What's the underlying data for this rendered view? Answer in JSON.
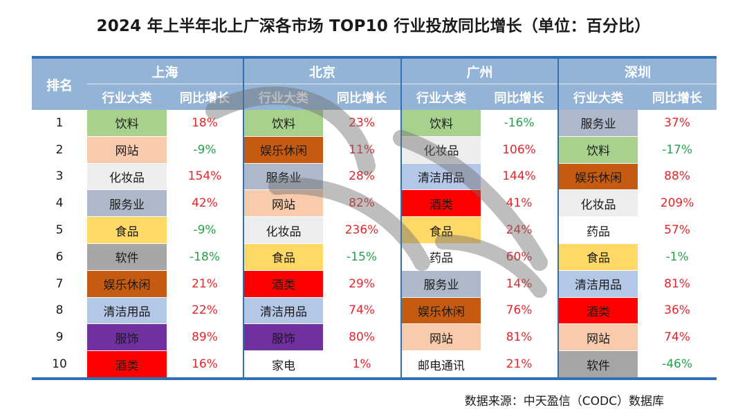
{
  "title": "2024 年上半年北上广深各市场 TOP10 行业投放同比增长（单位：百分比）",
  "header": {
    "rank_label": "排名",
    "cities": [
      "上海",
      "北京",
      "广州",
      "深圳"
    ],
    "category_label": "行业大类",
    "growth_label": "同比增长"
  },
  "colors": {
    "header_bg": "#93b3d7",
    "border": "#2f6fb3",
    "positive_text": "#e2262b",
    "negative_text": "#23a14a"
  },
  "category_colors": {
    "饮料": "#a9d18e",
    "网站": "#f8cbad",
    "化妆品": "#ededed",
    "服务业": "#adb9ca",
    "食品": "#ffd966",
    "软件": "#a6a6a6",
    "娱乐休闲": "#c55a11",
    "清洁用品": "#b4c7e7",
    "服饰": "#7030a0",
    "酒类": "#ff0000",
    "药品": "#ffffff",
    "家电": "#ffffff",
    "邮电通讯": "#ffffff"
  },
  "rows": [
    {
      "rank": "1",
      "cells": [
        {
          "cat": "饮料",
          "growth": "18%"
        },
        {
          "cat": "饮料",
          "growth": "23%"
        },
        {
          "cat": "饮料",
          "growth": "-16%"
        },
        {
          "cat": "服务业",
          "growth": "37%"
        }
      ]
    },
    {
      "rank": "2",
      "cells": [
        {
          "cat": "网站",
          "growth": "-9%"
        },
        {
          "cat": "娱乐休闲",
          "growth": "11%"
        },
        {
          "cat": "化妆品",
          "growth": "106%"
        },
        {
          "cat": "饮料",
          "growth": "-17%"
        }
      ]
    },
    {
      "rank": "3",
      "cells": [
        {
          "cat": "化妆品",
          "growth": "154%"
        },
        {
          "cat": "服务业",
          "growth": "28%"
        },
        {
          "cat": "清洁用品",
          "growth": "144%"
        },
        {
          "cat": "娱乐休闲",
          "growth": "88%"
        }
      ]
    },
    {
      "rank": "4",
      "cells": [
        {
          "cat": "服务业",
          "growth": "42%"
        },
        {
          "cat": "网站",
          "growth": "82%"
        },
        {
          "cat": "酒类",
          "growth": "41%"
        },
        {
          "cat": "化妆品",
          "growth": "209%"
        }
      ]
    },
    {
      "rank": "5",
      "cells": [
        {
          "cat": "食品",
          "growth": "-9%"
        },
        {
          "cat": "化妆品",
          "growth": "236%"
        },
        {
          "cat": "食品",
          "growth": "24%"
        },
        {
          "cat": "药品",
          "growth": "57%"
        }
      ]
    },
    {
      "rank": "6",
      "cells": [
        {
          "cat": "软件",
          "growth": "-18%"
        },
        {
          "cat": "食品",
          "growth": "-15%"
        },
        {
          "cat": "药品",
          "growth": "60%"
        },
        {
          "cat": "食品",
          "growth": "-1%"
        }
      ]
    },
    {
      "rank": "7",
      "cells": [
        {
          "cat": "娱乐休闲",
          "growth": "21%"
        },
        {
          "cat": "酒类",
          "growth": "29%"
        },
        {
          "cat": "服务业",
          "growth": "14%"
        },
        {
          "cat": "清洁用品",
          "growth": "81%"
        }
      ]
    },
    {
      "rank": "8",
      "cells": [
        {
          "cat": "清洁用品",
          "growth": "22%"
        },
        {
          "cat": "清洁用品",
          "growth": "74%"
        },
        {
          "cat": "娱乐休闲",
          "growth": "76%"
        },
        {
          "cat": "酒类",
          "growth": "36%"
        }
      ]
    },
    {
      "rank": "9",
      "cells": [
        {
          "cat": "服饰",
          "growth": "89%"
        },
        {
          "cat": "服饰",
          "growth": "80%"
        },
        {
          "cat": "网站",
          "growth": "81%"
        },
        {
          "cat": "网站",
          "growth": "74%"
        }
      ]
    },
    {
      "rank": "10",
      "cells": [
        {
          "cat": "酒类",
          "growth": "16%"
        },
        {
          "cat": "家电",
          "growth": "1%"
        },
        {
          "cat": "邮电通讯",
          "growth": "21%"
        },
        {
          "cat": "软件",
          "growth": "-46%"
        }
      ]
    }
  ],
  "source": "数据来源：中天盈信（CODC）数据库"
}
